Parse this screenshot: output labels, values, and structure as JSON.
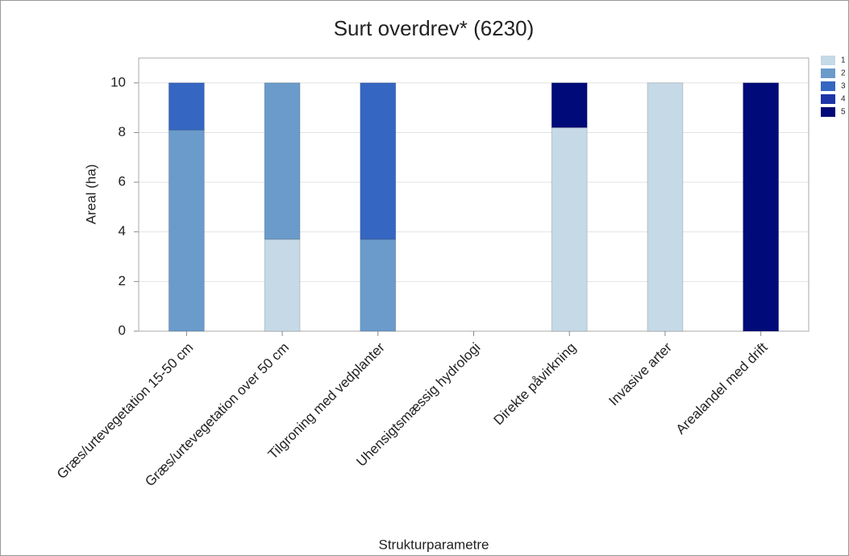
{
  "chart_data": {
    "type": "stacked_bar",
    "title": "Surt overdrev* (6230)",
    "x_label": "Strukturparametre",
    "y_label": "Areal (ha)",
    "categories": [
      "Græs/urtevegetation 15-50 cm",
      "Græs/urtevegetation over 50 cm",
      "Tilgroning med vedplanter",
      "Uhensigtsmæssig hydrologi",
      "Direkte påvirkning",
      "Invasive arter",
      "Arealandel med drift"
    ],
    "series": [
      {
        "name": "1",
        "color": "#c5d9e6",
        "values": [
          0,
          3.7,
          0,
          0,
          8.2,
          10,
          0
        ]
      },
      {
        "name": "2",
        "color": "#6b9bcb",
        "values": [
          8.1,
          6.3,
          3.7,
          0,
          0,
          0,
          0
        ]
      },
      {
        "name": "3",
        "color": "#3566c2",
        "values": [
          1.9,
          0,
          6.3,
          0,
          0,
          0,
          0
        ]
      },
      {
        "name": "4",
        "color": "#1d35a8",
        "values": [
          0,
          0,
          0,
          0,
          0,
          0,
          0
        ]
      },
      {
        "name": "5",
        "color": "#000a78",
        "values": [
          0,
          0,
          0,
          0,
          1.8,
          0,
          10
        ]
      }
    ],
    "ylim": [
      0,
      11
    ],
    "yticks": [
      0,
      2,
      4,
      6,
      8,
      10
    ],
    "grid": true,
    "legend": "top-right"
  }
}
